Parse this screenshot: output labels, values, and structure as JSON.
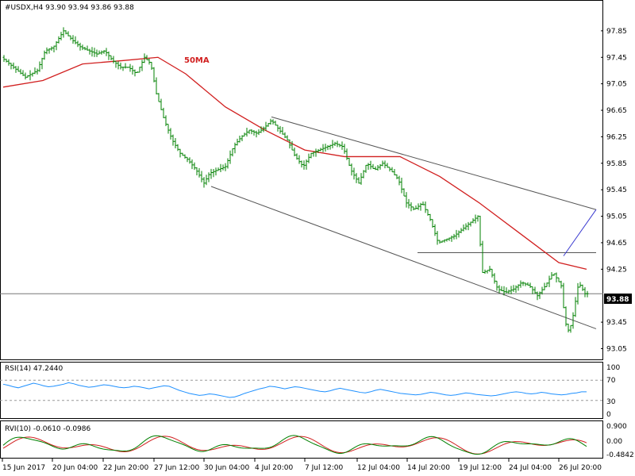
{
  "header": {
    "symbol_line": "#USDX,H4  93.90 93.94 93.86 93.88"
  },
  "annotations": {
    "ma_label": "50MA",
    "price_tag": "93.88"
  },
  "rsi_panel": {
    "label": "RSI(14) 47.2440",
    "levels": [
      "100",
      "70",
      "30",
      "0"
    ]
  },
  "rvi_panel": {
    "label": "RVI(10) -0.0610 -0.0986",
    "levels": [
      "0.900",
      "0.00",
      "-0.4842"
    ]
  },
  "colors": {
    "background": "#ffffff",
    "candle": "#008000",
    "ma": "#d11f1f",
    "trendline": "#555555",
    "rsi": "#1e90ff",
    "rvi_main": "#008000",
    "rvi_signal": "#d11f1f",
    "price_tag_bg": "#000000"
  },
  "chart_data": {
    "type": "candlestick",
    "symbol": "#USDX",
    "timeframe": "H4",
    "ohlc_last": {
      "open": 93.9,
      "high": 93.94,
      "low": 93.86,
      "close": 93.88
    },
    "ylim": [
      92.9,
      98.1
    ],
    "y_ticks": [
      "97.85",
      "97.45",
      "97.05",
      "96.65",
      "96.25",
      "95.85",
      "95.45",
      "95.05",
      "94.65",
      "94.25",
      "93.45",
      "93.05"
    ],
    "x_ticks": [
      "15 Jun 2017",
      "20 Jun 04:00",
      "22 Jun 20:00",
      "27 Jun 12:00",
      "30 Jun 04:00",
      "4 Jul 20:00",
      "7 Jul 12:00",
      "12 Jul 04:00",
      "14 Jul 20:00",
      "19 Jul 12:00",
      "24 Jul 04:00",
      "26 Jul 20:00"
    ],
    "price_path": [
      [
        0,
        97.45
      ],
      [
        15,
        97.3
      ],
      [
        30,
        97.15
      ],
      [
        45,
        97.25
      ],
      [
        55,
        97.55
      ],
      [
        65,
        97.6
      ],
      [
        78,
        97.85
      ],
      [
        90,
        97.7
      ],
      [
        100,
        97.6
      ],
      [
        110,
        97.55
      ],
      [
        120,
        97.5
      ],
      [
        130,
        97.55
      ],
      [
        140,
        97.4
      ],
      [
        150,
        97.3
      ],
      [
        160,
        97.3
      ],
      [
        170,
        97.2
      ],
      [
        180,
        97.45
      ],
      [
        188,
        97.35
      ],
      [
        195,
        96.9
      ],
      [
        205,
        96.5
      ],
      [
        215,
        96.2
      ],
      [
        225,
        96.0
      ],
      [
        235,
        95.9
      ],
      [
        245,
        95.75
      ],
      [
        255,
        95.55
      ],
      [
        262,
        95.7
      ],
      [
        272,
        95.75
      ],
      [
        282,
        95.8
      ],
      [
        292,
        96.1
      ],
      [
        302,
        96.25
      ],
      [
        312,
        96.35
      ],
      [
        322,
        96.3
      ],
      [
        332,
        96.4
      ],
      [
        340,
        96.5
      ],
      [
        350,
        96.35
      ],
      [
        360,
        96.2
      ],
      [
        370,
        95.95
      ],
      [
        380,
        95.8
      ],
      [
        390,
        96.0
      ],
      [
        400,
        96.05
      ],
      [
        410,
        96.1
      ],
      [
        420,
        96.15
      ],
      [
        430,
        96.1
      ],
      [
        440,
        95.75
      ],
      [
        450,
        95.55
      ],
      [
        460,
        95.85
      ],
      [
        470,
        95.75
      ],
      [
        480,
        95.85
      ],
      [
        490,
        95.75
      ],
      [
        500,
        95.6
      ],
      [
        510,
        95.25
      ],
      [
        520,
        95.15
      ],
      [
        530,
        95.25
      ],
      [
        540,
        95.0
      ],
      [
        550,
        94.65
      ],
      [
        560,
        94.7
      ],
      [
        570,
        94.75
      ],
      [
        580,
        94.85
      ],
      [
        590,
        94.95
      ],
      [
        600,
        95.05
      ],
      [
        606,
        94.2
      ],
      [
        615,
        94.25
      ],
      [
        625,
        93.95
      ],
      [
        635,
        93.9
      ],
      [
        645,
        93.95
      ],
      [
        655,
        94.05
      ],
      [
        665,
        94.0
      ],
      [
        675,
        93.85
      ],
      [
        685,
        94.0
      ],
      [
        695,
        94.2
      ],
      [
        705,
        94.0
      ],
      [
        710,
        93.45
      ],
      [
        715,
        93.3
      ],
      [
        720,
        93.55
      ],
      [
        727,
        94.05
      ],
      [
        735,
        93.88
      ]
    ],
    "ma50": [
      [
        0,
        97.0
      ],
      [
        50,
        97.1
      ],
      [
        100,
        97.35
      ],
      [
        150,
        97.4
      ],
      [
        195,
        97.45
      ],
      [
        230,
        97.2
      ],
      [
        280,
        96.7
      ],
      [
        330,
        96.35
      ],
      [
        380,
        96.05
      ],
      [
        430,
        95.95
      ],
      [
        500,
        95.95
      ],
      [
        550,
        95.65
      ],
      [
        600,
        95.25
      ],
      [
        650,
        94.8
      ],
      [
        700,
        94.35
      ],
      [
        735,
        94.25
      ]
    ],
    "channel": {
      "upper": [
        [
          338,
          96.55
        ],
        [
          747,
          95.15
        ]
      ],
      "lower": [
        [
          262,
          95.5
        ],
        [
          747,
          93.35
        ]
      ],
      "horizontal": [
        [
          522,
          94.5
        ],
        [
          747,
          94.5
        ]
      ],
      "projection": [
        [
          706,
          94.45
        ],
        [
          747,
          95.15
        ]
      ]
    },
    "current_price": 93.88,
    "rsi": {
      "period": 14,
      "value": 47.244,
      "ylim": [
        0,
        100
      ],
      "levels": [
        70,
        30
      ],
      "values": [
        62,
        60,
        57,
        55,
        58,
        61,
        64,
        62,
        59,
        57,
        58,
        60,
        62,
        65,
        63,
        60,
        58,
        56,
        57,
        59,
        61,
        60,
        58,
        56,
        55,
        56,
        58,
        57,
        55,
        53,
        55,
        57,
        59,
        58,
        54,
        50,
        47,
        44,
        42,
        40,
        41,
        43,
        42,
        40,
        38,
        36,
        37,
        40,
        44,
        47,
        50,
        53,
        55,
        58,
        57,
        55,
        53,
        55,
        57,
        56,
        54,
        52,
        50,
        48,
        47,
        49,
        52,
        54,
        52,
        50,
        48,
        46,
        45,
        47,
        50,
        52,
        50,
        48,
        46,
        44,
        43,
        42,
        41,
        42,
        44,
        46,
        45,
        43,
        41,
        40,
        41,
        43,
        45,
        44,
        42,
        41,
        40,
        39,
        40,
        42,
        44,
        46,
        47,
        46,
        44,
        43,
        44,
        46,
        45,
        43,
        42,
        41,
        42,
        44,
        45,
        47,
        47
      ]
    },
    "rvi": {
      "period": 10,
      "main": -0.061,
      "signal": -0.0986,
      "ylim": [
        -0.4842,
        0.9
      ],
      "levels": [
        0.9,
        0.0,
        -0.4842
      ]
    }
  }
}
